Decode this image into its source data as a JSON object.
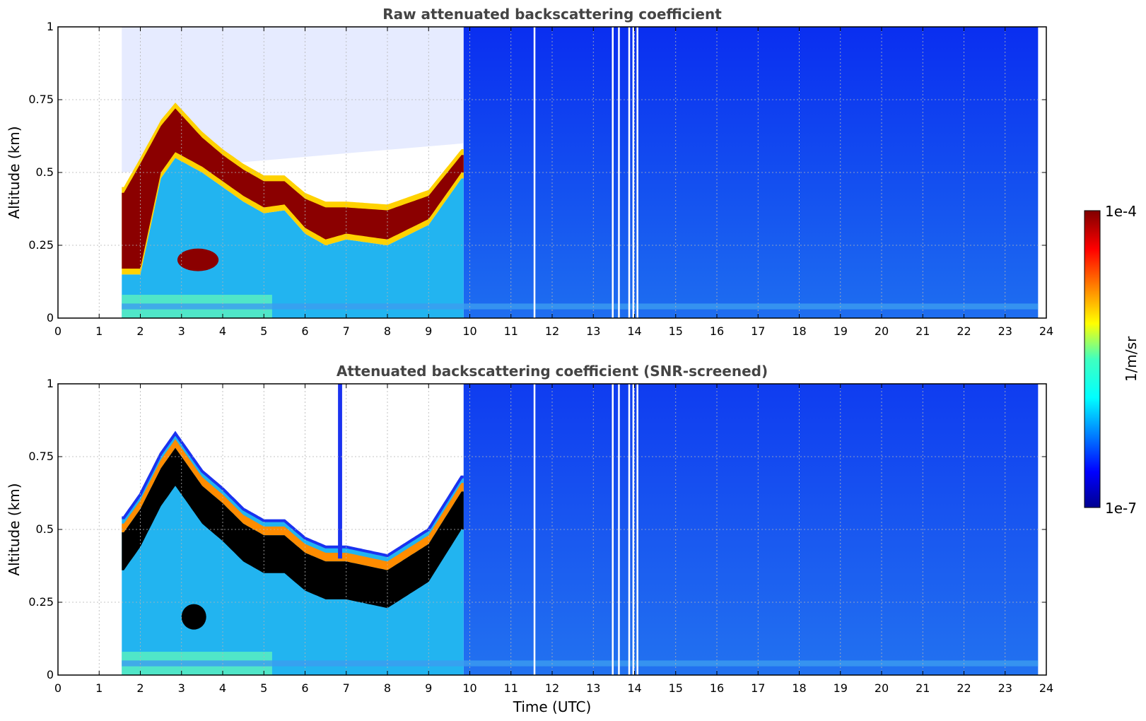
{
  "chart_data": [
    {
      "type": "heatmap",
      "title": "Raw attenuated backscattering coefficient",
      "xlabel": "",
      "ylabel": "Altitude (km)",
      "xlim": [
        0,
        24
      ],
      "ylim": [
        0,
        1
      ],
      "xticks": [
        "0",
        "1",
        "2",
        "3",
        "4",
        "5",
        "6",
        "7",
        "8",
        "9",
        "10",
        "11",
        "12",
        "13",
        "14",
        "15",
        "16",
        "17",
        "18",
        "19",
        "20",
        "21",
        "22",
        "23",
        "24"
      ],
      "yticks": [
        "0",
        "0.25",
        "0.5",
        "0.75",
        "1"
      ],
      "grid": true,
      "data_start_utc": 1.55,
      "data_end_utc": 23.8,
      "layer_top_km": [
        {
          "t": 1.6,
          "z": 0.45
        },
        {
          "t": 2.0,
          "z": 0.55
        },
        {
          "t": 2.5,
          "z": 0.68
        },
        {
          "t": 2.85,
          "z": 0.74
        },
        {
          "t": 3.5,
          "z": 0.64
        },
        {
          "t": 4.0,
          "z": 0.58
        },
        {
          "t": 4.5,
          "z": 0.53
        },
        {
          "t": 5.0,
          "z": 0.49
        },
        {
          "t": 5.5,
          "z": 0.49
        },
        {
          "t": 6.0,
          "z": 0.43
        },
        {
          "t": 6.5,
          "z": 0.4
        },
        {
          "t": 7.0,
          "z": 0.4
        },
        {
          "t": 8.0,
          "z": 0.39
        },
        {
          "t": 9.0,
          "z": 0.44
        },
        {
          "t": 9.8,
          "z": 0.58
        }
      ],
      "layer_base_km": [
        {
          "t": 1.6,
          "z": 0.15
        },
        {
          "t": 2.0,
          "z": 0.15
        },
        {
          "t": 2.5,
          "z": 0.48
        },
        {
          "t": 2.85,
          "z": 0.55
        },
        {
          "t": 3.5,
          "z": 0.5
        },
        {
          "t": 4.0,
          "z": 0.45
        },
        {
          "t": 4.5,
          "z": 0.4
        },
        {
          "t": 5.0,
          "z": 0.36
        },
        {
          "t": 5.5,
          "z": 0.37
        },
        {
          "t": 6.0,
          "z": 0.29
        },
        {
          "t": 6.5,
          "z": 0.25
        },
        {
          "t": 7.0,
          "z": 0.27
        },
        {
          "t": 8.0,
          "z": 0.25
        },
        {
          "t": 9.0,
          "z": 0.32
        },
        {
          "t": 9.8,
          "z": 0.48
        }
      ],
      "gaps_utc": [
        11.55,
        13.45,
        13.6,
        13.85,
        13.95,
        14.05
      ]
    },
    {
      "type": "heatmap",
      "title": "Attenuated backscattering coefficient (SNR-screened)",
      "xlabel": "Time (UTC)",
      "ylabel": "Altitude (km)",
      "xlim": [
        0,
        24
      ],
      "ylim": [
        0,
        1
      ],
      "xticks": [
        "0",
        "1",
        "2",
        "3",
        "4",
        "5",
        "6",
        "7",
        "8",
        "9",
        "10",
        "11",
        "12",
        "13",
        "14",
        "15",
        "16",
        "17",
        "18",
        "19",
        "20",
        "21",
        "22",
        "23",
        "24"
      ],
      "yticks": [
        "0",
        "0.25",
        "0.5",
        "0.75",
        "1"
      ],
      "grid": true,
      "data_start_utc": 1.55,
      "data_end_utc": 23.8,
      "screened_top_km": [
        {
          "t": 1.6,
          "z": 0.54
        },
        {
          "t": 2.0,
          "z": 0.62
        },
        {
          "t": 2.5,
          "z": 0.76
        },
        {
          "t": 2.85,
          "z": 0.83
        },
        {
          "t": 3.5,
          "z": 0.7
        },
        {
          "t": 4.0,
          "z": 0.64
        },
        {
          "t": 4.5,
          "z": 0.57
        },
        {
          "t": 5.0,
          "z": 0.53
        },
        {
          "t": 5.5,
          "z": 0.53
        },
        {
          "t": 6.0,
          "z": 0.47
        },
        {
          "t": 6.5,
          "z": 0.44
        },
        {
          "t": 7.0,
          "z": 0.44
        },
        {
          "t": 8.0,
          "z": 0.41
        },
        {
          "t": 9.0,
          "z": 0.5
        },
        {
          "t": 9.8,
          "z": 0.68
        }
      ],
      "gaps_utc": [
        11.55,
        13.45,
        13.6,
        13.85,
        13.95,
        14.05
      ]
    }
  ],
  "colorbar": {
    "label": "1/m/sr",
    "max_label": "1e-4",
    "min_label": "1e-7",
    "colormap": "jet",
    "scale": "log",
    "range": [
      1e-07,
      0.0001
    ]
  },
  "colors": {
    "background": "#0a32e6",
    "aerosol": "#19a0f0",
    "surface": "#50e6c8",
    "layer": "#8b0000",
    "saturated": "#000000",
    "text_title": "#444444"
  }
}
